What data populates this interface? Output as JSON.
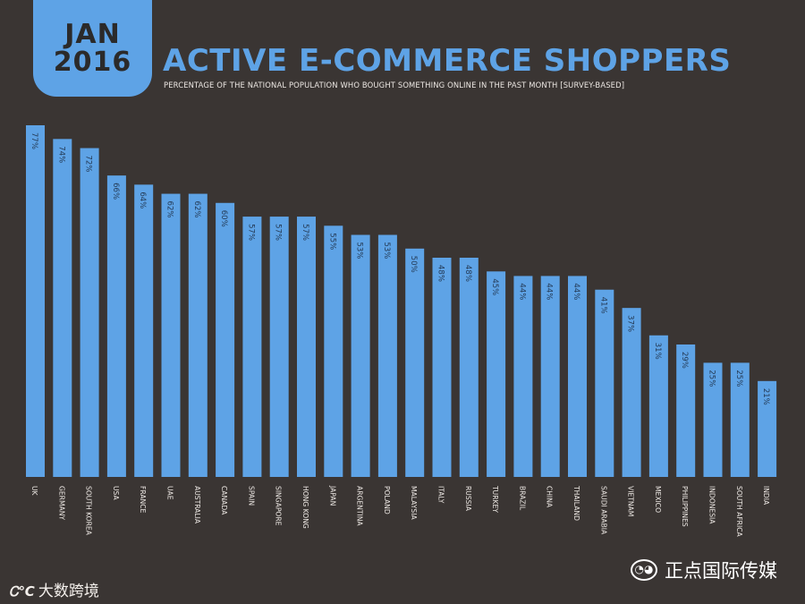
{
  "header": {
    "badge_month": "JAN",
    "badge_year": "2016",
    "title": "ACTIVE E-COMMERCE SHOPPERS",
    "subtitle": "PERCENTAGE OF THE NATIONAL POPULATION WHO BOUGHT SOMETHING ONLINE IN THE PAST MONTH [SURVEY-BASED]"
  },
  "colors": {
    "background": "#3a3533",
    "bar": "#5ea3e6",
    "bar_label": "#243a55",
    "text": "#ece7e3"
  },
  "chart_data": {
    "type": "bar",
    "title": "ACTIVE E-COMMERCE SHOPPERS",
    "subtitle": "PERCENTAGE OF THE NATIONAL POPULATION WHO BOUGHT SOMETHING ONLINE IN THE PAST MONTH [SURVEY-BASED]",
    "categories": [
      "UK",
      "GERMANY",
      "SOUTH KOREA",
      "USA",
      "FRANCE",
      "UAE",
      "AUSTRALIA",
      "CANADA",
      "SPAIN",
      "SINGAPORE",
      "HONG KONG",
      "JAPAN",
      "ARGENTINA",
      "POLAND",
      "MALAYSIA",
      "ITALY",
      "RUSSIA",
      "TURKEY",
      "BRAZIL",
      "CHINA",
      "THAILAND",
      "SAUDI ARABIA",
      "VIETNAM",
      "MEXICO",
      "PHILIPPINES",
      "INDONESIA",
      "SOUTH AFRICA",
      "INDIA"
    ],
    "values": [
      77,
      74,
      72,
      66,
      64,
      62,
      62,
      60,
      57,
      57,
      57,
      55,
      53,
      53,
      50,
      48,
      48,
      45,
      44,
      44,
      44,
      41,
      37,
      31,
      29,
      25,
      25,
      21
    ],
    "labels": [
      "77%",
      "74%",
      "72%",
      "66%",
      "64%",
      "62%",
      "62%",
      "60%",
      "57%",
      "57%",
      "57%",
      "55%",
      "53%",
      "53%",
      "50%",
      "48%",
      "48%",
      "45%",
      "44%",
      "44%",
      "44%",
      "41%",
      "37%",
      "31%",
      "29%",
      "25%",
      "25%",
      "21%"
    ],
    "xlabel": "",
    "ylabel": "",
    "ylim": [
      0,
      100
    ],
    "grid": false,
    "legend": "none"
  },
  "watermarks": {
    "left_logo": "Ꮯ℃",
    "left_text": "大数跨境",
    "right_icon": "◔◕",
    "right_text": "正点国际传媒"
  }
}
